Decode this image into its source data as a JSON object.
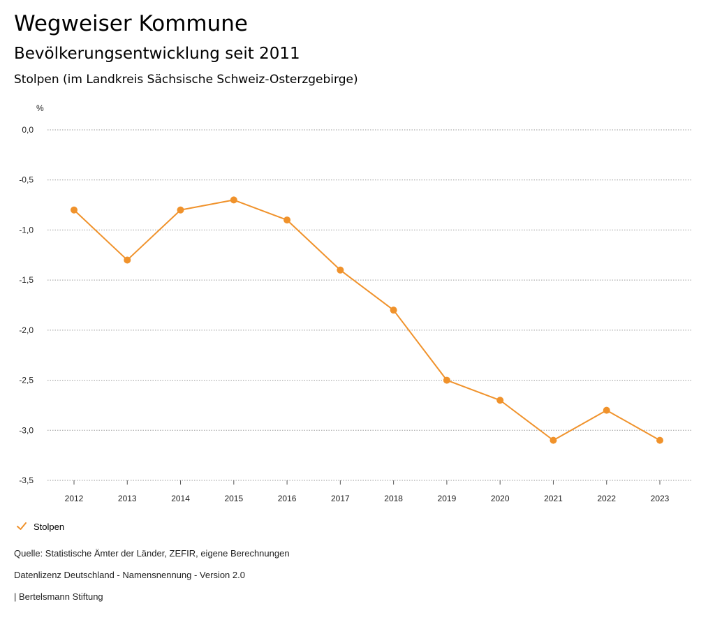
{
  "header": {
    "title": "Wegweiser Kommune",
    "subtitle": "Bevölkerungsentwicklung seit 2011",
    "region": "Stolpen (im Landkreis Sächsische Schweiz-Osterzgebirge)"
  },
  "chart_data": {
    "type": "line",
    "title": "Bevölkerungsentwicklung seit 2011",
    "ylabel": "%",
    "xlabel": "",
    "x": [
      "2012",
      "2013",
      "2014",
      "2015",
      "2016",
      "2017",
      "2018",
      "2019",
      "2020",
      "2021",
      "2022",
      "2023"
    ],
    "series": [
      {
        "name": "Stolpen",
        "color": "#f0922b",
        "values": [
          -0.8,
          -1.3,
          -0.8,
          -0.7,
          -0.9,
          -1.4,
          -1.8,
          -2.5,
          -2.7,
          -3.1,
          -2.8,
          -3.1
        ]
      }
    ],
    "yticks": [
      0.0,
      -0.5,
      -1.0,
      -1.5,
      -2.0,
      -2.5,
      -3.0,
      -3.5
    ],
    "ytick_labels": [
      "0,0",
      "-0,5",
      "-1,0",
      "-1,5",
      "-2,0",
      "-2,5",
      "-3,0",
      "-3,5"
    ],
    "ylim": [
      -3.5,
      0.0
    ],
    "grid": true,
    "legend_position": "bottom-left"
  },
  "legend": {
    "label": "Stolpen",
    "icon": "check-icon"
  },
  "footer": {
    "source": "Quelle: Statistische Ämter der Länder, ZEFIR, eigene Berechnungen",
    "license": "Datenlizenz Deutschland - Namensnennung - Version 2.0",
    "publisher": "| Bertelsmann Stiftung"
  }
}
